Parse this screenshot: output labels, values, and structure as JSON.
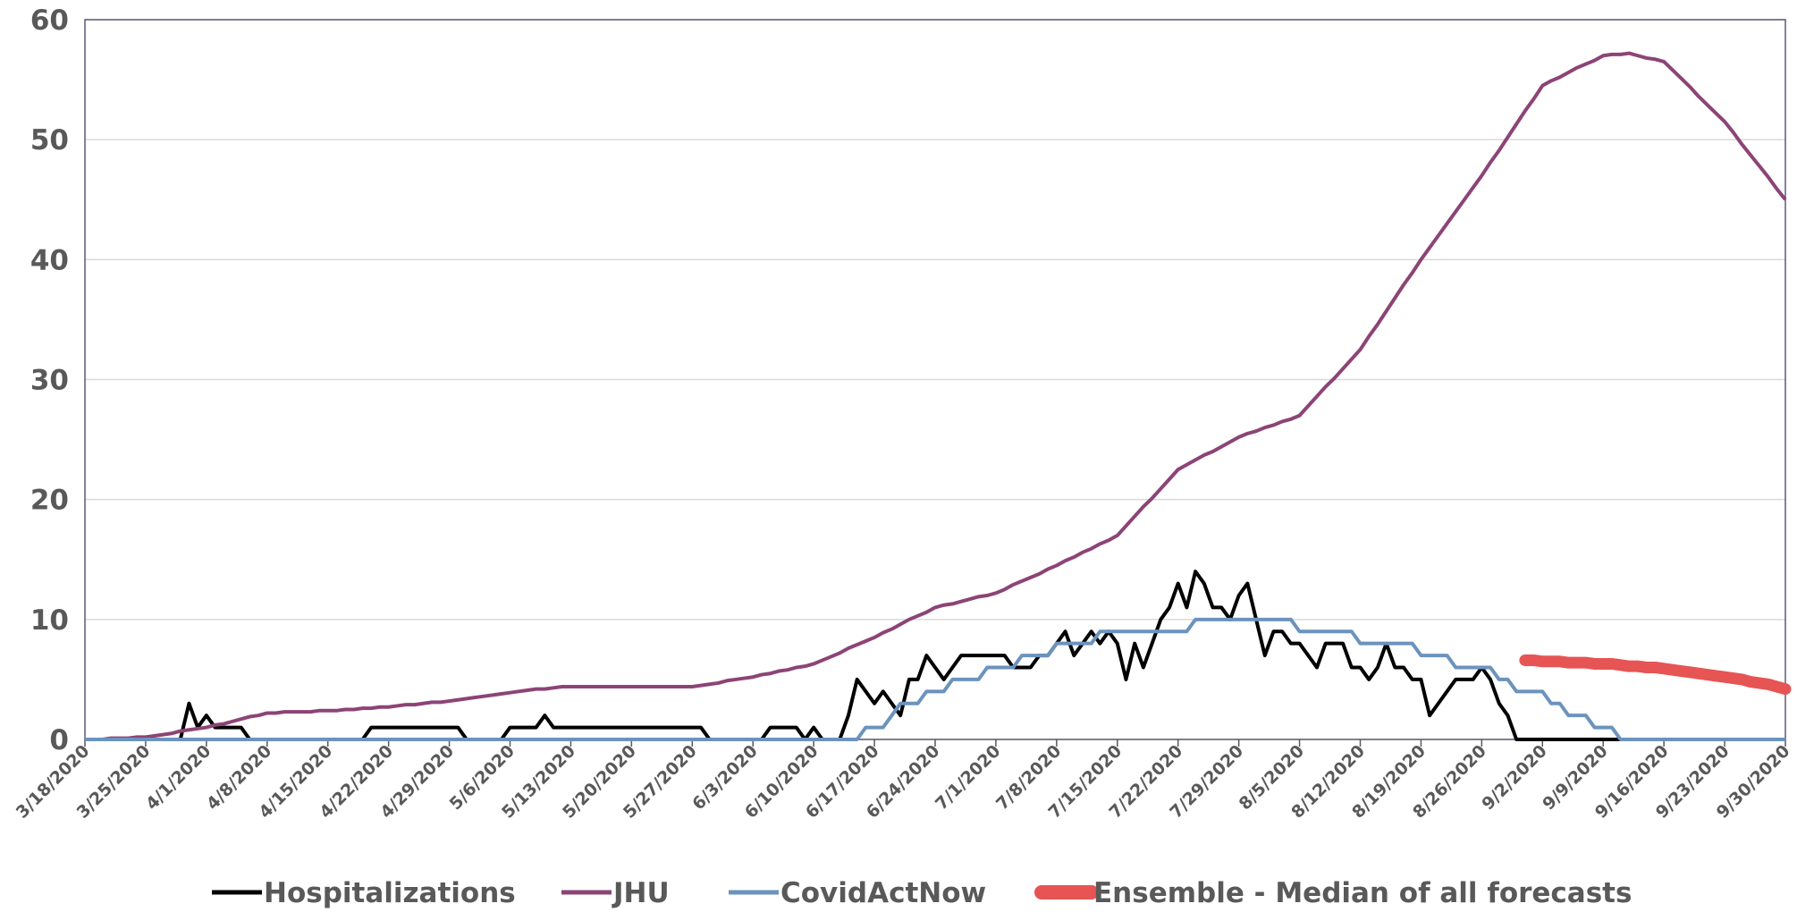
{
  "chart_data": {
    "type": "line",
    "categories": [
      "3/18/2020",
      null,
      null,
      null,
      null,
      null,
      null,
      "3/25/2020",
      null,
      null,
      null,
      null,
      null,
      null,
      "4/1/2020",
      null,
      null,
      null,
      null,
      null,
      null,
      "4/8/2020",
      null,
      null,
      null,
      null,
      null,
      null,
      "4/15/2020",
      null,
      null,
      null,
      null,
      null,
      null,
      "4/22/2020",
      null,
      null,
      null,
      null,
      null,
      null,
      "4/29/2020",
      null,
      null,
      null,
      null,
      null,
      null,
      "5/6/2020",
      null,
      null,
      null,
      null,
      null,
      null,
      "5/13/2020",
      null,
      null,
      null,
      null,
      null,
      null,
      "5/20/2020",
      null,
      null,
      null,
      null,
      null,
      null,
      "5/27/2020",
      null,
      null,
      null,
      null,
      null,
      null,
      "6/3/2020",
      null,
      null,
      null,
      null,
      null,
      null,
      "6/10/2020",
      null,
      null,
      null,
      null,
      null,
      null,
      "6/17/2020",
      null,
      null,
      null,
      null,
      null,
      null,
      "6/24/2020",
      null,
      null,
      null,
      null,
      null,
      null,
      "7/1/2020",
      null,
      null,
      null,
      null,
      null,
      null,
      "7/8/2020",
      null,
      null,
      null,
      null,
      null,
      null,
      "7/15/2020",
      null,
      null,
      null,
      null,
      null,
      null,
      "7/22/2020",
      null,
      null,
      null,
      null,
      null,
      null,
      "7/29/2020",
      null,
      null,
      null,
      null,
      null,
      null,
      "8/5/2020",
      null,
      null,
      null,
      null,
      null,
      null,
      "8/12/2020",
      null,
      null,
      null,
      null,
      null,
      null,
      "8/19/2020",
      null,
      null,
      null,
      null,
      null,
      null,
      "8/26/2020",
      null,
      null,
      null,
      null,
      null,
      null,
      "9/2/2020",
      null,
      null,
      null,
      null,
      null,
      null,
      "9/9/2020",
      null,
      null,
      null,
      null,
      null,
      null,
      "9/16/2020",
      null,
      null,
      null,
      null,
      null,
      null,
      "9/23/2020",
      null,
      null,
      null,
      null,
      null,
      null,
      "9/30/2020"
    ],
    "series": [
      {
        "name": "Hospitalizations",
        "color": "#000000",
        "width": 4,
        "values": [
          0,
          0,
          0,
          0,
          0,
          0,
          0,
          0,
          0,
          0,
          0,
          0,
          3,
          1,
          2,
          1,
          1,
          1,
          1,
          0,
          0,
          0,
          0,
          0,
          0,
          0,
          0,
          0,
          0,
          0,
          0,
          0,
          0,
          1,
          1,
          1,
          1,
          1,
          1,
          1,
          1,
          1,
          1,
          1,
          0,
          0,
          0,
          0,
          0,
          1,
          1,
          1,
          1,
          2,
          1,
          1,
          1,
          1,
          1,
          1,
          1,
          1,
          1,
          1,
          1,
          1,
          1,
          1,
          1,
          1,
          1,
          1,
          0,
          0,
          0,
          0,
          0,
          0,
          0,
          1,
          1,
          1,
          1,
          0,
          1,
          0,
          0,
          0,
          2,
          5,
          4,
          3,
          4,
          3,
          2,
          5,
          5,
          7,
          6,
          5,
          6,
          7,
          7,
          7,
          7,
          7,
          7,
          6,
          6,
          6,
          7,
          7,
          8,
          9,
          7,
          8,
          9,
          8,
          9,
          8,
          5,
          8,
          6,
          8,
          10,
          11,
          13,
          11,
          14,
          13,
          11,
          11,
          10,
          12,
          13,
          10,
          7,
          9,
          9,
          8,
          8,
          7,
          6,
          8,
          8,
          8,
          6,
          6,
          5,
          6,
          8,
          6,
          6,
          5,
          5,
          2,
          3,
          4,
          5,
          5,
          5,
          6,
          5,
          3,
          2,
          0,
          0,
          0,
          0,
          0,
          0,
          0,
          0,
          0,
          0,
          0,
          0,
          0,
          0,
          0,
          0,
          null,
          null,
          null,
          null,
          null,
          null,
          null,
          null,
          null,
          null,
          null,
          null,
          null,
          null,
          null,
          null
        ]
      },
      {
        "name": "JHU",
        "color": "#8c4476",
        "width": 4,
        "values": [
          0,
          0,
          0,
          0.1,
          0.1,
          0.1,
          0.2,
          0.2,
          0.3,
          0.4,
          0.5,
          0.7,
          0.8,
          0.9,
          1.0,
          1.2,
          1.3,
          1.5,
          1.7,
          1.9,
          2.0,
          2.2,
          2.2,
          2.3,
          2.3,
          2.3,
          2.3,
          2.4,
          2.4,
          2.4,
          2.5,
          2.5,
          2.6,
          2.6,
          2.7,
          2.7,
          2.8,
          2.9,
          2.9,
          3.0,
          3.1,
          3.1,
          3.2,
          3.3,
          3.4,
          3.5,
          3.6,
          3.7,
          3.8,
          3.9,
          4.0,
          4.1,
          4.2,
          4.2,
          4.3,
          4.4,
          4.4,
          4.4,
          4.4,
          4.4,
          4.4,
          4.4,
          4.4,
          4.4,
          4.4,
          4.4,
          4.4,
          4.4,
          4.4,
          4.4,
          4.4,
          4.5,
          4.6,
          4.7,
          4.9,
          5.0,
          5.1,
          5.2,
          5.4,
          5.5,
          5.7,
          5.8,
          6.0,
          6.1,
          6.3,
          6.6,
          6.9,
          7.2,
          7.6,
          7.9,
          8.2,
          8.5,
          8.9,
          9.2,
          9.6,
          10.0,
          10.3,
          10.6,
          11.0,
          11.2,
          11.3,
          11.5,
          11.7,
          11.9,
          12.0,
          12.2,
          12.5,
          12.9,
          13.2,
          13.5,
          13.8,
          14.2,
          14.5,
          14.9,
          15.2,
          15.6,
          15.9,
          16.3,
          16.6,
          17.0,
          17.8,
          18.6,
          19.4,
          20.1,
          20.9,
          21.7,
          22.5,
          22.9,
          23.3,
          23.7,
          24.0,
          24.4,
          24.8,
          25.2,
          25.5,
          25.7,
          26.0,
          26.2,
          26.5,
          26.7,
          27.0,
          27.8,
          28.6,
          29.4,
          30.1,
          30.9,
          31.7,
          32.5,
          33.6,
          34.6,
          35.7,
          36.8,
          37.9,
          38.9,
          40.0,
          41.0,
          42.0,
          43.0,
          44.0,
          45.0,
          46.0,
          47.0,
          48.1,
          49.1,
          50.2,
          51.3,
          52.4,
          53.4,
          54.5,
          54.9,
          55.2,
          55.6,
          56.0,
          56.3,
          56.6,
          57.0,
          57.1,
          57.1,
          57.2,
          57.0,
          56.8,
          56.7,
          56.5,
          55.8,
          55.1,
          54.4,
          53.6,
          52.9,
          52.2,
          51.5,
          50.6,
          49.6,
          48.7,
          47.8,
          46.9,
          45.9,
          45.0
        ]
      },
      {
        "name": "CovidActNow",
        "color": "#6b93bd",
        "width": 4,
        "values": [
          0,
          0,
          0,
          0,
          0,
          0,
          0,
          0,
          0,
          0,
          0,
          0,
          0,
          0,
          0,
          0,
          0,
          0,
          0,
          0,
          0,
          0,
          0,
          0,
          0,
          0,
          0,
          0,
          0,
          0,
          0,
          0,
          0,
          0,
          0,
          0,
          0,
          0,
          0,
          0,
          0,
          0,
          0,
          0,
          0,
          0,
          0,
          0,
          0,
          0,
          0,
          0,
          0,
          0,
          0,
          0,
          0,
          0,
          0,
          0,
          0,
          0,
          0,
          0,
          0,
          0,
          0,
          0,
          0,
          0,
          0,
          0,
          0,
          0,
          0,
          0,
          0,
          0,
          0,
          0,
          0,
          0,
          0,
          0,
          0,
          0,
          0,
          0,
          0,
          0,
          1,
          1,
          1,
          2,
          3,
          3,
          3,
          4,
          4,
          4,
          5,
          5,
          5,
          5,
          6,
          6,
          6,
          6,
          7,
          7,
          7,
          7,
          8,
          8,
          8,
          8,
          8,
          9,
          9,
          9,
          9,
          9,
          9,
          9,
          9,
          9,
          9,
          9,
          10,
          10,
          10,
          10,
          10,
          10,
          10,
          10,
          10,
          10,
          10,
          10,
          9,
          9,
          9,
          9,
          9,
          9,
          9,
          8,
          8,
          8,
          8,
          8,
          8,
          8,
          7,
          7,
          7,
          7,
          6,
          6,
          6,
          6,
          6,
          5,
          5,
          4,
          4,
          4,
          4,
          3,
          3,
          2,
          2,
          2,
          1,
          1,
          1,
          0,
          0,
          0,
          0,
          0,
          0,
          0,
          0,
          0,
          0,
          0,
          0,
          0,
          0,
          0,
          0,
          0,
          0,
          0,
          0
        ]
      },
      {
        "name": "Ensemble - Median of all forecasts",
        "color": "#e65454",
        "width": 13,
        "values": [
          null,
          null,
          null,
          null,
          null,
          null,
          null,
          null,
          null,
          null,
          null,
          null,
          null,
          null,
          null,
          null,
          null,
          null,
          null,
          null,
          null,
          null,
          null,
          null,
          null,
          null,
          null,
          null,
          null,
          null,
          null,
          null,
          null,
          null,
          null,
          null,
          null,
          null,
          null,
          null,
          null,
          null,
          null,
          null,
          null,
          null,
          null,
          null,
          null,
          null,
          null,
          null,
          null,
          null,
          null,
          null,
          null,
          null,
          null,
          null,
          null,
          null,
          null,
          null,
          null,
          null,
          null,
          null,
          null,
          null,
          null,
          null,
          null,
          null,
          null,
          null,
          null,
          null,
          null,
          null,
          null,
          null,
          null,
          null,
          null,
          null,
          null,
          null,
          null,
          null,
          null,
          null,
          null,
          null,
          null,
          null,
          null,
          null,
          null,
          null,
          null,
          null,
          null,
          null,
          null,
          null,
          null,
          null,
          null,
          null,
          null,
          null,
          null,
          null,
          null,
          null,
          null,
          null,
          null,
          null,
          null,
          null,
          null,
          null,
          null,
          null,
          null,
          null,
          null,
          null,
          null,
          null,
          null,
          null,
          null,
          null,
          null,
          null,
          null,
          null,
          null,
          null,
          null,
          null,
          null,
          null,
          null,
          null,
          null,
          null,
          null,
          null,
          null,
          null,
          null,
          null,
          null,
          null,
          null,
          null,
          null,
          null,
          null,
          null,
          null,
          null,
          6.6,
          6.6,
          6.5,
          6.5,
          6.5,
          6.4,
          6.4,
          6.4,
          6.3,
          6.3,
          6.3,
          6.2,
          6.1,
          6.1,
          6.0,
          6.0,
          5.9,
          5.8,
          5.7,
          5.6,
          5.5,
          5.4,
          5.3,
          5.2,
          5.1,
          5.0,
          4.8,
          4.7,
          4.6,
          4.4,
          4.2
        ]
      }
    ],
    "ylim": [
      0,
      60
    ],
    "yticks": [
      0,
      10,
      20,
      30,
      40,
      50,
      60
    ],
    "grid": true,
    "legend": "bottom"
  }
}
